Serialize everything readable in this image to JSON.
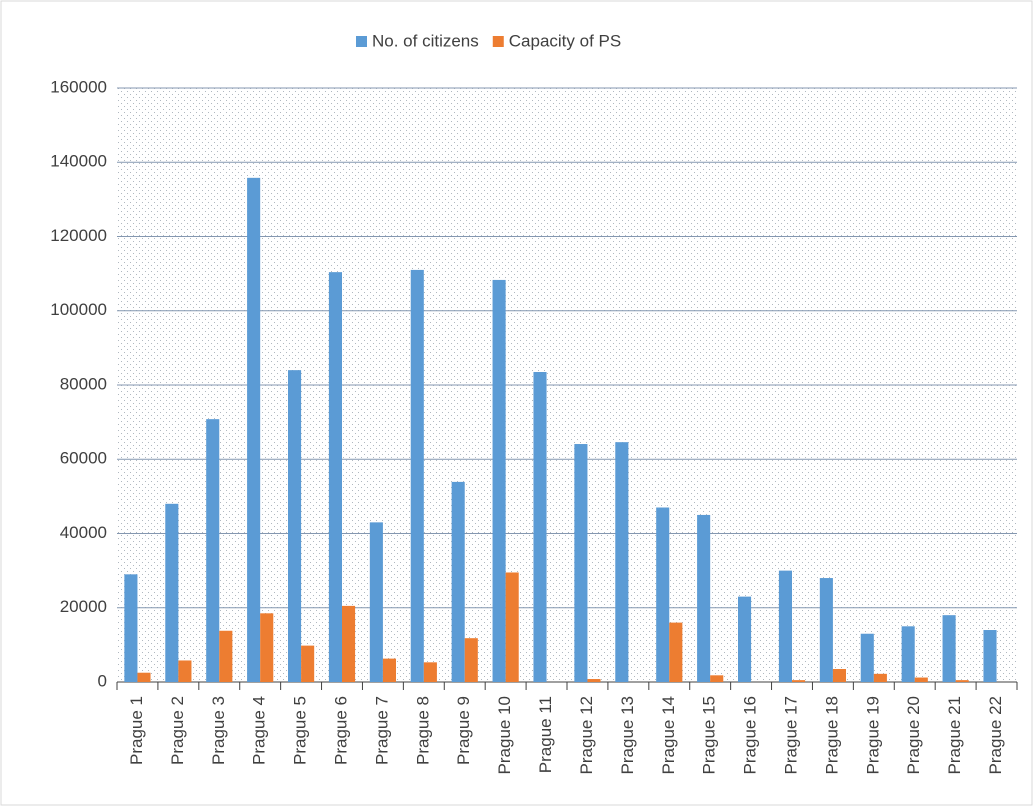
{
  "chart_data": {
    "type": "bar",
    "categories": [
      "Prague 1",
      "Prague 2",
      "Prague 3",
      "Prague 4",
      "Prague 5",
      "Prague 6",
      "Prague 7",
      "Prague 8",
      "Prague 9",
      "Prague 10",
      "Prague 11",
      "Prague 12",
      "Prague 13",
      "Prague 14",
      "Prague 15",
      "Prague 16",
      "Prague 17",
      "Prague 18",
      "Prague 19",
      "Prague 20",
      "Prague 21",
      "Prague 22"
    ],
    "series": [
      {
        "name": "No. of citizens",
        "color": "#5b9bd5",
        "values": [
          29000,
          48000,
          70800,
          135800,
          84000,
          110400,
          43000,
          111000,
          53900,
          108300,
          83500,
          64100,
          64600,
          47000,
          45000,
          23000,
          30000,
          28000,
          13000,
          15000,
          18000,
          14000
        ]
      },
      {
        "name": "Capacity of PS",
        "color": "#ed7d31",
        "values": [
          2500,
          5800,
          13800,
          18500,
          9800,
          20500,
          6300,
          5300,
          11800,
          29500,
          0,
          800,
          0,
          16000,
          1800,
          0,
          500,
          3500,
          2200,
          1200,
          500,
          0
        ]
      }
    ],
    "ylim": [
      0,
      160000
    ],
    "yticks": [
      0,
      20000,
      40000,
      60000,
      80000,
      100000,
      120000,
      140000,
      160000
    ],
    "grid": true,
    "legend": "top"
  }
}
